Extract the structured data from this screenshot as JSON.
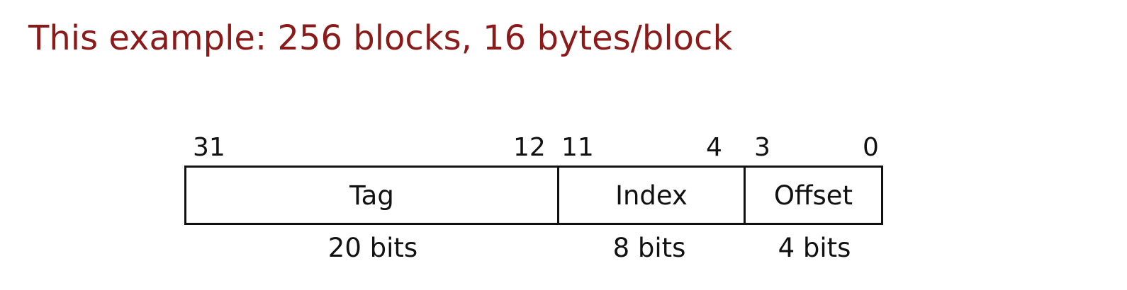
{
  "title": "This example: 256 blocks, 16 bytes/block",
  "fields": [
    {
      "name": "Tag",
      "high_bit": "31",
      "low_bit": "12",
      "width": "20 bits"
    },
    {
      "name": "Index",
      "high_bit": "11",
      "low_bit": "4",
      "width": "8 bits"
    },
    {
      "name": "Offset",
      "high_bit": "3",
      "low_bit": "0",
      "width": "4 bits"
    }
  ],
  "colors": {
    "title": "#8b1a1a",
    "text": "#111111",
    "border": "#111111"
  }
}
